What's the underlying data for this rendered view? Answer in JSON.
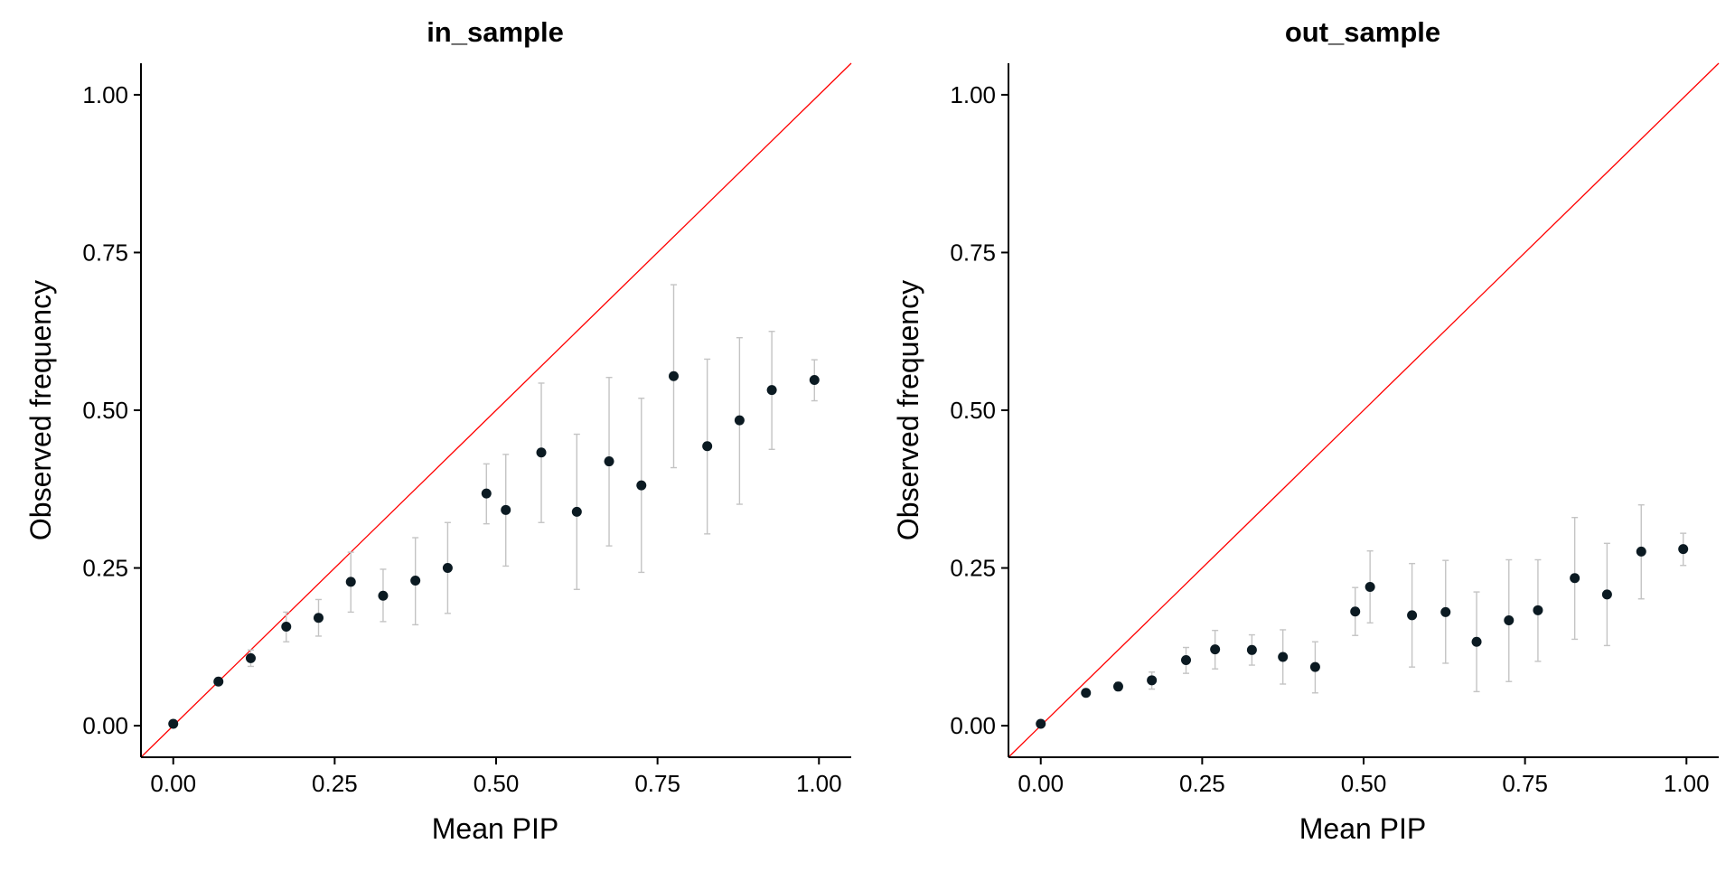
{
  "chart_data": [
    {
      "type": "scatter",
      "title": "in_sample",
      "xlabel": "Mean PIP",
      "ylabel": "Observed frequency",
      "xlim": [
        -0.05,
        1.05
      ],
      "ylim": [
        -0.05,
        1.05
      ],
      "xticks": [
        0.0,
        0.25,
        0.5,
        0.75,
        1.0
      ],
      "yticks": [
        0.0,
        0.25,
        0.5,
        0.75,
        1.0
      ],
      "xtick_labels": [
        "0.00",
        "0.25",
        "0.50",
        "0.75",
        "1.00"
      ],
      "ytick_labels": [
        "0.00",
        "0.25",
        "0.50",
        "0.75",
        "1.00"
      ],
      "reference_line": {
        "from": [
          -0.05,
          -0.05
        ],
        "to": [
          1.05,
          1.05
        ],
        "color": "#ff0000"
      },
      "point_color": "#0b1a22",
      "errorbar_color": "#c4c4c4",
      "points": [
        {
          "x": 0.0,
          "y": 0.003,
          "lo": 0.002,
          "hi": 0.004
        },
        {
          "x": 0.07,
          "y": 0.07,
          "lo": 0.066,
          "hi": 0.074
        },
        {
          "x": 0.12,
          "y": 0.107,
          "lo": 0.094,
          "hi": 0.12
        },
        {
          "x": 0.175,
          "y": 0.157,
          "lo": 0.133,
          "hi": 0.18
        },
        {
          "x": 0.225,
          "y": 0.171,
          "lo": 0.142,
          "hi": 0.2
        },
        {
          "x": 0.275,
          "y": 0.228,
          "lo": 0.18,
          "hi": 0.275
        },
        {
          "x": 0.325,
          "y": 0.206,
          "lo": 0.165,
          "hi": 0.248
        },
        {
          "x": 0.375,
          "y": 0.23,
          "lo": 0.16,
          "hi": 0.298
        },
        {
          "x": 0.425,
          "y": 0.25,
          "lo": 0.178,
          "hi": 0.322
        },
        {
          "x": 0.485,
          "y": 0.368,
          "lo": 0.32,
          "hi": 0.415
        },
        {
          "x": 0.515,
          "y": 0.342,
          "lo": 0.253,
          "hi": 0.43
        },
        {
          "x": 0.57,
          "y": 0.433,
          "lo": 0.322,
          "hi": 0.543
        },
        {
          "x": 0.625,
          "y": 0.339,
          "lo": 0.216,
          "hi": 0.462
        },
        {
          "x": 0.675,
          "y": 0.419,
          "lo": 0.285,
          "hi": 0.552
        },
        {
          "x": 0.725,
          "y": 0.381,
          "lo": 0.243,
          "hi": 0.519
        },
        {
          "x": 0.775,
          "y": 0.554,
          "lo": 0.409,
          "hi": 0.699
        },
        {
          "x": 0.827,
          "y": 0.443,
          "lo": 0.304,
          "hi": 0.581
        },
        {
          "x": 0.877,
          "y": 0.484,
          "lo": 0.351,
          "hi": 0.615
        },
        {
          "x": 0.927,
          "y": 0.532,
          "lo": 0.438,
          "hi": 0.625
        },
        {
          "x": 0.993,
          "y": 0.548,
          "lo": 0.515,
          "hi": 0.58
        }
      ]
    },
    {
      "type": "scatter",
      "title": "out_sample",
      "xlabel": "Mean PIP",
      "ylabel": "Observed frequency",
      "xlim": [
        -0.05,
        1.05
      ],
      "ylim": [
        -0.05,
        1.05
      ],
      "xticks": [
        0.0,
        0.25,
        0.5,
        0.75,
        1.0
      ],
      "yticks": [
        0.0,
        0.25,
        0.5,
        0.75,
        1.0
      ],
      "xtick_labels": [
        "0.00",
        "0.25",
        "0.50",
        "0.75",
        "1.00"
      ],
      "ytick_labels": [
        "0.00",
        "0.25",
        "0.50",
        "0.75",
        "1.00"
      ],
      "reference_line": {
        "from": [
          -0.05,
          -0.05
        ],
        "to": [
          1.05,
          1.05
        ],
        "color": "#ff0000"
      },
      "point_color": "#0b1a22",
      "errorbar_color": "#c4c4c4",
      "points": [
        {
          "x": 0.0,
          "y": 0.003,
          "lo": 0.002,
          "hi": 0.004
        },
        {
          "x": 0.07,
          "y": 0.052,
          "lo": 0.048,
          "hi": 0.056
        },
        {
          "x": 0.12,
          "y": 0.062,
          "lo": 0.056,
          "hi": 0.069
        },
        {
          "x": 0.172,
          "y": 0.072,
          "lo": 0.058,
          "hi": 0.085
        },
        {
          "x": 0.225,
          "y": 0.104,
          "lo": 0.083,
          "hi": 0.124
        },
        {
          "x": 0.27,
          "y": 0.121,
          "lo": 0.09,
          "hi": 0.151
        },
        {
          "x": 0.327,
          "y": 0.12,
          "lo": 0.096,
          "hi": 0.144
        },
        {
          "x": 0.375,
          "y": 0.109,
          "lo": 0.066,
          "hi": 0.152
        },
        {
          "x": 0.425,
          "y": 0.093,
          "lo": 0.052,
          "hi": 0.133
        },
        {
          "x": 0.487,
          "y": 0.181,
          "lo": 0.143,
          "hi": 0.219
        },
        {
          "x": 0.51,
          "y": 0.22,
          "lo": 0.163,
          "hi": 0.277
        },
        {
          "x": 0.575,
          "y": 0.175,
          "lo": 0.093,
          "hi": 0.257
        },
        {
          "x": 0.627,
          "y": 0.18,
          "lo": 0.099,
          "hi": 0.262
        },
        {
          "x": 0.675,
          "y": 0.133,
          "lo": 0.054,
          "hi": 0.212
        },
        {
          "x": 0.725,
          "y": 0.167,
          "lo": 0.07,
          "hi": 0.263
        },
        {
          "x": 0.77,
          "y": 0.183,
          "lo": 0.102,
          "hi": 0.263
        },
        {
          "x": 0.827,
          "y": 0.234,
          "lo": 0.137,
          "hi": 0.33
        },
        {
          "x": 0.877,
          "y": 0.208,
          "lo": 0.127,
          "hi": 0.289
        },
        {
          "x": 0.93,
          "y": 0.276,
          "lo": 0.201,
          "hi": 0.35
        },
        {
          "x": 0.995,
          "y": 0.28,
          "lo": 0.254,
          "hi": 0.305
        }
      ]
    }
  ]
}
